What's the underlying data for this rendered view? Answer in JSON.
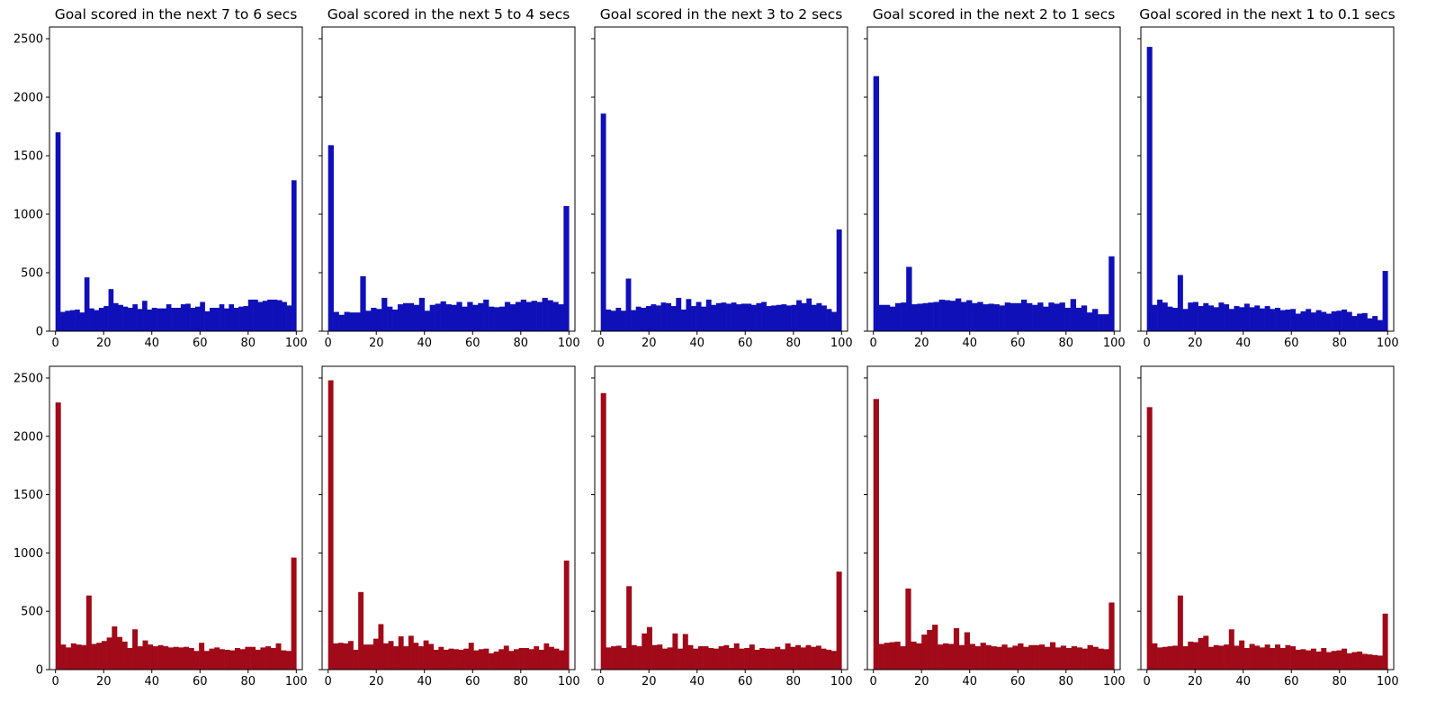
{
  "chart_data": [
    {
      "type": "bar",
      "row": 1,
      "title": "Goal scored in the next 7 to 6 secs",
      "color": "#1010b8",
      "xlim": [
        -2.5,
        102.5
      ],
      "ylim": [
        0,
        2600
      ],
      "x_ticks": [
        0,
        20,
        40,
        60,
        80,
        100
      ],
      "y_ticks": [
        0,
        500,
        1000,
        1500,
        2000,
        2500
      ],
      "bin_width": 2,
      "values": [
        1700,
        165,
        175,
        180,
        185,
        160,
        460,
        195,
        180,
        200,
        215,
        360,
        240,
        225,
        210,
        200,
        230,
        190,
        260,
        185,
        200,
        195,
        195,
        230,
        200,
        200,
        230,
        235,
        200,
        210,
        250,
        170,
        200,
        200,
        230,
        195,
        230,
        200,
        210,
        215,
        270,
        270,
        250,
        260,
        270,
        270,
        265,
        250,
        220,
        1290
      ]
    },
    {
      "type": "bar",
      "row": 1,
      "title": "Goal scored in the next 5 to 4 secs",
      "color": "#1010b8",
      "xlim": [
        -2.5,
        102.5
      ],
      "ylim": [
        0,
        2600
      ],
      "x_ticks": [
        0,
        20,
        40,
        60,
        80,
        100
      ],
      "y_ticks": [
        0,
        500,
        1000,
        1500,
        2000,
        2500
      ],
      "bin_width": 2,
      "values": [
        1590,
        165,
        140,
        165,
        160,
        160,
        470,
        175,
        200,
        190,
        285,
        210,
        185,
        230,
        240,
        240,
        225,
        285,
        175,
        225,
        235,
        255,
        230,
        225,
        250,
        210,
        250,
        225,
        240,
        270,
        210,
        205,
        210,
        250,
        230,
        250,
        270,
        250,
        260,
        250,
        285,
        265,
        250,
        230,
        1070,
        0,
        0,
        0,
        0,
        0
      ],
      "note_values_layout": "spread"
    },
    {
      "type": "bar",
      "row": 1,
      "title": "Goal scored in the next 3 to 2 secs",
      "color": "#1010b8",
      "xlim": [
        -2.5,
        102.5
      ],
      "ylim": [
        0,
        2600
      ],
      "x_ticks": [
        0,
        20,
        40,
        60,
        80,
        100
      ],
      "y_ticks": [
        0,
        500,
        1000,
        1500,
        2000,
        2500
      ],
      "bin_width": 2,
      "values": [
        1860,
        185,
        175,
        200,
        175,
        450,
        180,
        210,
        200,
        215,
        230,
        220,
        245,
        240,
        215,
        285,
        185,
        275,
        215,
        250,
        210,
        270,
        225,
        240,
        245,
        235,
        245,
        230,
        235,
        235,
        225,
        240,
        250,
        215,
        220,
        225,
        230,
        220,
        225,
        265,
        240,
        280,
        225,
        240,
        220,
        190,
        165,
        870
      ]
    },
    {
      "type": "bar",
      "row": 1,
      "title": "Goal scored in the next 2 to 1 secs",
      "color": "#1010b8",
      "xlim": [
        -2.5,
        102.5
      ],
      "ylim": [
        0,
        2600
      ],
      "x_ticks": [
        0,
        20,
        40,
        60,
        80,
        100
      ],
      "y_ticks": [
        0,
        500,
        1000,
        1500,
        2000,
        2500
      ],
      "bin_width": 2,
      "values": [
        2180,
        225,
        225,
        210,
        240,
        245,
        550,
        230,
        235,
        240,
        245,
        250,
        270,
        265,
        260,
        280,
        250,
        265,
        240,
        250,
        230,
        235,
        230,
        220,
        245,
        240,
        240,
        270,
        240,
        225,
        245,
        210,
        245,
        235,
        245,
        200,
        275,
        200,
        220,
        160,
        190,
        145,
        145,
        640
      ]
    },
    {
      "type": "bar",
      "row": 1,
      "title": "Goal scored in the next 1 to 0.1 secs",
      "color": "#1010b8",
      "xlim": [
        -2.5,
        102.5
      ],
      "ylim": [
        0,
        2600
      ],
      "x_ticks": [
        0,
        20,
        40,
        60,
        80,
        100
      ],
      "y_ticks": [
        0,
        500,
        1000,
        1500,
        2000,
        2500
      ],
      "bin_width": 2,
      "values": [
        2430,
        225,
        270,
        245,
        210,
        200,
        480,
        190,
        245,
        250,
        215,
        240,
        220,
        205,
        245,
        230,
        190,
        215,
        205,
        235,
        205,
        220,
        195,
        215,
        190,
        200,
        180,
        185,
        190,
        150,
        170,
        190,
        160,
        180,
        165,
        150,
        170,
        175,
        185,
        165,
        130,
        150,
        155,
        110,
        130,
        95,
        515
      ]
    },
    {
      "type": "bar",
      "row": 2,
      "title": "",
      "color": "#a00a19",
      "xlim": [
        -2.5,
        102.5
      ],
      "ylim": [
        0,
        2600
      ],
      "x_ticks": [
        0,
        20,
        40,
        60,
        80,
        100
      ],
      "y_ticks": [
        0,
        500,
        1000,
        1500,
        2000,
        2500
      ],
      "bin_width": 2,
      "values": [
        2290,
        215,
        190,
        225,
        215,
        210,
        635,
        220,
        230,
        245,
        275,
        370,
        280,
        240,
        185,
        345,
        200,
        250,
        215,
        200,
        210,
        200,
        190,
        195,
        190,
        195,
        185,
        160,
        230,
        160,
        180,
        190,
        175,
        170,
        165,
        185,
        175,
        195,
        195,
        170,
        190,
        200,
        185,
        225,
        165,
        160,
        960
      ]
    },
    {
      "type": "bar",
      "row": 2,
      "title": "",
      "color": "#a00a19",
      "xlim": [
        -2.5,
        102.5
      ],
      "ylim": [
        0,
        2600
      ],
      "x_ticks": [
        0,
        20,
        40,
        60,
        80,
        100
      ],
      "y_ticks": [
        0,
        500,
        1000,
        1500,
        2000,
        2500
      ],
      "bin_width": 2,
      "values": [
        2480,
        225,
        230,
        225,
        245,
        170,
        665,
        215,
        215,
        265,
        390,
        225,
        245,
        200,
        285,
        200,
        290,
        230,
        200,
        250,
        220,
        170,
        195,
        170,
        180,
        175,
        170,
        180,
        230,
        165,
        175,
        180,
        140,
        155,
        175,
        205,
        160,
        175,
        185,
        185,
        175,
        200,
        170,
        225,
        195,
        180,
        165,
        935
      ]
    },
    {
      "type": "bar",
      "row": 2,
      "title": "",
      "color": "#a00a19",
      "xlim": [
        -2.5,
        102.5
      ],
      "ylim": [
        0,
        2600
      ],
      "x_ticks": [
        0,
        20,
        40,
        60,
        80,
        100
      ],
      "y_ticks": [
        0,
        500,
        1000,
        1500,
        2000,
        2500
      ],
      "bin_width": 2,
      "values": [
        2370,
        190,
        200,
        205,
        185,
        715,
        210,
        200,
        310,
        365,
        210,
        215,
        180,
        190,
        310,
        180,
        305,
        210,
        180,
        200,
        200,
        185,
        180,
        200,
        210,
        185,
        225,
        180,
        185,
        215,
        170,
        185,
        180,
        180,
        195,
        175,
        225,
        195,
        210,
        190,
        210,
        195,
        205,
        180,
        170,
        160,
        840
      ]
    },
    {
      "type": "bar",
      "row": 2,
      "title": "",
      "color": "#a00a19",
      "xlim": [
        -2.5,
        102.5
      ],
      "ylim": [
        0,
        2600
      ],
      "x_ticks": [
        0,
        20,
        40,
        60,
        80,
        100
      ],
      "y_ticks": [
        0,
        500,
        1000,
        1500,
        2000,
        2500
      ],
      "bin_width": 2,
      "values": [
        2320,
        220,
        230,
        235,
        240,
        200,
        695,
        240,
        225,
        300,
        340,
        385,
        215,
        225,
        220,
        355,
        210,
        320,
        220,
        200,
        230,
        210,
        200,
        195,
        215,
        190,
        205,
        225,
        195,
        210,
        210,
        215,
        195,
        235,
        190,
        205,
        185,
        200,
        190,
        180,
        210,
        195,
        180,
        175,
        575
      ]
    },
    {
      "type": "bar",
      "row": 2,
      "title": "",
      "color": "#a00a19",
      "xlim": [
        -2.5,
        102.5
      ],
      "ylim": [
        0,
        2600
      ],
      "x_ticks": [
        0,
        20,
        40,
        60,
        80,
        100
      ],
      "y_ticks": [
        0,
        500,
        1000,
        1500,
        2000,
        2500
      ],
      "bin_width": 2,
      "values": [
        2250,
        225,
        190,
        195,
        200,
        205,
        635,
        200,
        240,
        235,
        270,
        290,
        195,
        210,
        205,
        215,
        345,
        205,
        250,
        185,
        220,
        205,
        190,
        215,
        185,
        215,
        185,
        210,
        200,
        170,
        175,
        165,
        180,
        155,
        185,
        150,
        160,
        165,
        180,
        140,
        150,
        155,
        135,
        130,
        125,
        120,
        480
      ]
    }
  ]
}
